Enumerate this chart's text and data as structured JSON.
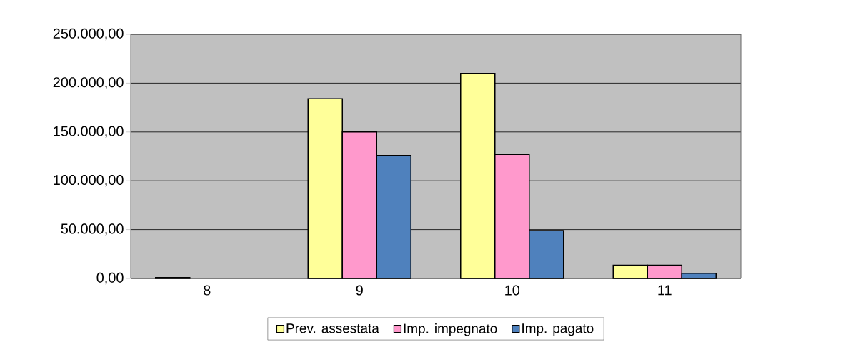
{
  "chart_data": {
    "type": "bar",
    "categories": [
      "8",
      "9",
      "10",
      "11"
    ],
    "series": [
      {
        "name": "Prev. assestata",
        "color": "#ffff99",
        "values": [
          1000,
          184000,
          210000,
          13500
        ]
      },
      {
        "name": "Imp. impegnato",
        "color": "#ff99cc",
        "values": [
          null,
          150000,
          127000,
          13500
        ]
      },
      {
        "name": "Imp. pagato",
        "color": "#4f81bd",
        "values": [
          null,
          126000,
          49000,
          5300
        ]
      }
    ],
    "ylim": [
      0,
      250000
    ],
    "yticks": [
      {
        "value": 0,
        "label": "0,00"
      },
      {
        "value": 50000,
        "label": "50.000,00"
      },
      {
        "value": 100000,
        "label": "100.000,00"
      },
      {
        "value": 150000,
        "label": "150.000,00"
      },
      {
        "value": 200000,
        "label": "200.000,00"
      },
      {
        "value": 250000,
        "label": "250.000,00"
      }
    ],
    "grid": "y",
    "legend": "bottom"
  }
}
